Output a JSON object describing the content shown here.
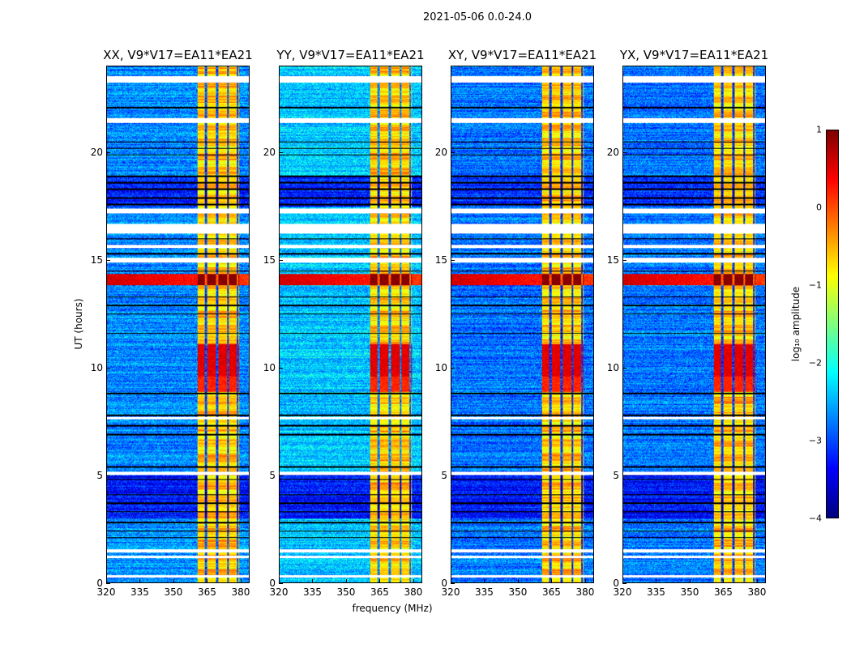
{
  "chart_data": {
    "type": "heatmap",
    "title": "2021-05-06 0.0-24.0",
    "xlabel": "frequency (MHz)",
    "ylabel": "UT (hours)",
    "xlim": [
      320,
      384
    ],
    "ylim": [
      0,
      24
    ],
    "xticks": [
      320,
      335,
      350,
      365,
      380
    ],
    "yticks": [
      0,
      5,
      10,
      15,
      20
    ],
    "panels": [
      {
        "title": "XX, V9*V17=EA11*EA21",
        "bg_level": -2.7
      },
      {
        "title": "YY, V9*V17=EA11*EA21",
        "bg_level": -2.4
      },
      {
        "title": "XY, V9*V17=EA11*EA21",
        "bg_level": -2.8
      },
      {
        "title": "YX, V9*V17=EA11*EA21",
        "bg_level": -2.8
      }
    ],
    "colorbar": {
      "label": "log₁₀ amplitude",
      "range": [
        -4,
        1
      ],
      "ticks": [
        1,
        0,
        -1,
        -2,
        -3,
        -4
      ],
      "colormap": "jet"
    },
    "features": {
      "rfi_band_mhz": [
        360.5,
        379.5
      ],
      "rfi_band_level": -0.7,
      "rfi_gap_channels_mhz": [
        364.5,
        369.5,
        374.5,
        378.8
      ],
      "flagged_hours": [
        [
          23.25,
          23.55
        ],
        [
          21.4,
          21.6
        ],
        [
          17.2,
          17.4
        ],
        [
          16.25,
          16.7
        ],
        [
          15.55,
          15.7
        ],
        [
          14.9,
          15.1
        ],
        [
          7.6,
          7.7
        ],
        [
          5.0,
          5.15
        ],
        [
          1.4,
          1.55
        ],
        [
          1.15,
          1.25
        ],
        [
          0.25,
          0.35
        ]
      ],
      "dark_line_hours": [
        22.1,
        20.5,
        20.2,
        19.9,
        18.9,
        18.6,
        18.3,
        17.9,
        17.6,
        16.0,
        15.3,
        14.5,
        13.3,
        12.9,
        12.5,
        11.6,
        8.8,
        7.8,
        7.3,
        6.9,
        5.4,
        4.8,
        4.1,
        3.7,
        3.3,
        2.8,
        2.4,
        2.1
      ],
      "high_hours": [
        [
          13.85,
          14.35,
          1.0
        ],
        [
          9.6,
          11.1,
          0.5
        ],
        [
          8.9,
          9.6,
          0.2
        ]
      ],
      "low_time_hours": [
        [
          3.0,
          5.0,
          -3.3
        ],
        [
          17.5,
          18.9,
          -3.2
        ]
      ]
    }
  }
}
